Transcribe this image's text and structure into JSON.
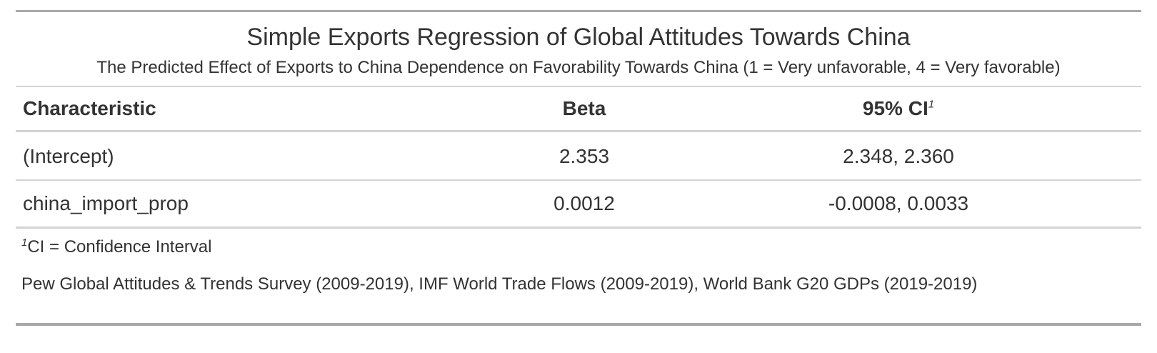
{
  "table": {
    "title": "Simple Exports Regression of Global Attitudes Towards China",
    "subtitle": "The Predicted Effect of Exports to China Dependence on Favorability Towards China (1 = Very unfavorable, 4 = Very favorable)",
    "columns": {
      "characteristic": "Characteristic",
      "beta": "Beta",
      "ci": "95% CI",
      "ci_footnote_mark": "1"
    },
    "rows": [
      {
        "characteristic": "(Intercept)",
        "beta": "2.353",
        "ci": "2.348, 2.360"
      },
      {
        "characteristic": "china_import_prop",
        "beta": "0.0012",
        "ci": "-0.0008, 0.0033"
      }
    ],
    "footnote": {
      "mark": "1",
      "text": "CI = Confidence Interval"
    },
    "source_note": "Pew Global Attitudes & Trends Survey (2009-2019), IMF World Trade Flows (2009-2019), World Bank G20 GDPs (2019-2019)"
  }
}
